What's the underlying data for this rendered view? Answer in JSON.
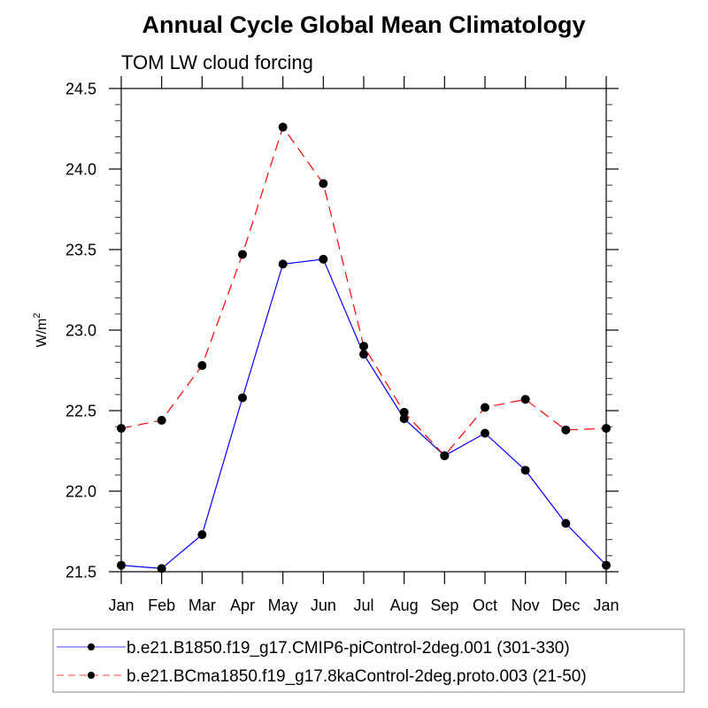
{
  "chart_data": {
    "type": "line",
    "title": "Annual Cycle Global Mean Climatology",
    "subtitle": "TOM LW cloud forcing",
    "xlabel": "",
    "ylabel": "W/m",
    "ylabel_superscript": "2",
    "categories": [
      "Jan",
      "Feb",
      "Mar",
      "Apr",
      "May",
      "Jun",
      "Jul",
      "Aug",
      "Sep",
      "Oct",
      "Nov",
      "Dec",
      "Jan"
    ],
    "ylim": [
      21.5,
      24.5
    ],
    "yticks": [
      21.5,
      22.0,
      22.5,
      23.0,
      23.5,
      24.0,
      24.5
    ],
    "ytick_labels": [
      "21.5",
      "22.0",
      "22.5",
      "23.0",
      "23.5",
      "24.0",
      "24.5"
    ],
    "yminor_step": 0.1,
    "grid": false,
    "legend_position": "bottom",
    "series": [
      {
        "name": "b.e21.B1850.f19_g17.CMIP6-piControl-2deg.001 (301-330)",
        "color": "#0000ff",
        "dash": "solid",
        "marker": "filled-circle",
        "values": [
          21.54,
          21.52,
          21.73,
          22.58,
          23.41,
          23.44,
          22.85,
          22.45,
          22.22,
          22.36,
          22.13,
          21.8,
          21.54
        ]
      },
      {
        "name": "b.e21.BCma1850.f19_g17.8kaControl-2deg.proto.003 (21-50)",
        "color": "#ff0000",
        "dash": "dashed",
        "marker": "filled-circle",
        "values": [
          22.39,
          22.44,
          22.78,
          23.47,
          24.26,
          23.91,
          22.9,
          22.49,
          22.22,
          22.52,
          22.57,
          22.38,
          22.39
        ]
      }
    ]
  }
}
